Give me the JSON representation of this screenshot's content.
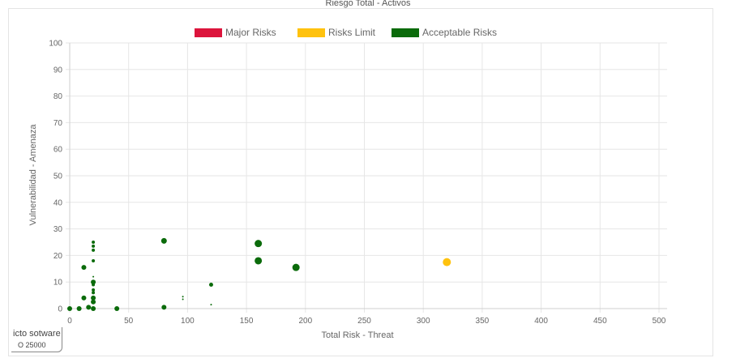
{
  "chart_data": {
    "type": "scatter",
    "title": "Riesgo Total - Activos",
    "xlabel": "Total Risk - Threat",
    "ylabel": "Vulnerabilidad - Amenaza",
    "xlim": [
      0,
      500
    ],
    "ylim": [
      0,
      100
    ],
    "xticks": [
      "0",
      "50",
      "100",
      "150",
      "200",
      "250",
      "300",
      "350",
      "400",
      "450",
      "500"
    ],
    "yticks": [
      "0",
      "10",
      "20",
      "30",
      "40",
      "50",
      "60",
      "70",
      "80",
      "90",
      "100"
    ],
    "grid": true,
    "legend_position": "top-center",
    "series": [
      {
        "name": "Major Risks",
        "color": "#dc143c",
        "points": []
      },
      {
        "name": "Risks Limit",
        "color": "#ffc20e",
        "points": [
          {
            "x": 320,
            "y": 17.5,
            "r": 5
          }
        ]
      },
      {
        "name": "Acceptable Risks",
        "color": "#0b6b0b",
        "points": [
          {
            "x": 0,
            "y": 0,
            "r": 3
          },
          {
            "x": 8,
            "y": 0,
            "r": 3
          },
          {
            "x": 12,
            "y": 15.5,
            "r": 3
          },
          {
            "x": 12,
            "y": 4,
            "r": 3
          },
          {
            "x": 16,
            "y": 0.5,
            "r": 3
          },
          {
            "x": 20,
            "y": 25,
            "r": 2
          },
          {
            "x": 20,
            "y": 23.5,
            "r": 2
          },
          {
            "x": 20,
            "y": 22,
            "r": 2
          },
          {
            "x": 20,
            "y": 18,
            "r": 2
          },
          {
            "x": 20,
            "y": 12,
            "r": 1
          },
          {
            "x": 20,
            "y": 10,
            "r": 3
          },
          {
            "x": 20,
            "y": 9,
            "r": 2
          },
          {
            "x": 20,
            "y": 7,
            "r": 2
          },
          {
            "x": 20,
            "y": 6,
            "r": 2
          },
          {
            "x": 20,
            "y": 4,
            "r": 3
          },
          {
            "x": 20,
            "y": 2.5,
            "r": 3
          },
          {
            "x": 20,
            "y": 0,
            "r": 3
          },
          {
            "x": 40,
            "y": 0,
            "r": 3
          },
          {
            "x": 80,
            "y": 25.5,
            "r": 3.5
          },
          {
            "x": 80,
            "y": 0.5,
            "r": 3
          },
          {
            "x": 96,
            "y": 4.5,
            "r": 1
          },
          {
            "x": 96,
            "y": 3.5,
            "r": 1
          },
          {
            "x": 120,
            "y": 9,
            "r": 2.5
          },
          {
            "x": 120,
            "y": 1.5,
            "r": 1
          },
          {
            "x": 160,
            "y": 24.5,
            "r": 4.5
          },
          {
            "x": 160,
            "y": 18,
            "r": 4.5
          },
          {
            "x": 192,
            "y": 15.5,
            "r": 4.5
          }
        ]
      }
    ]
  },
  "tooltip": {
    "line1": "icto sotware",
    "line2": "O 25000"
  }
}
